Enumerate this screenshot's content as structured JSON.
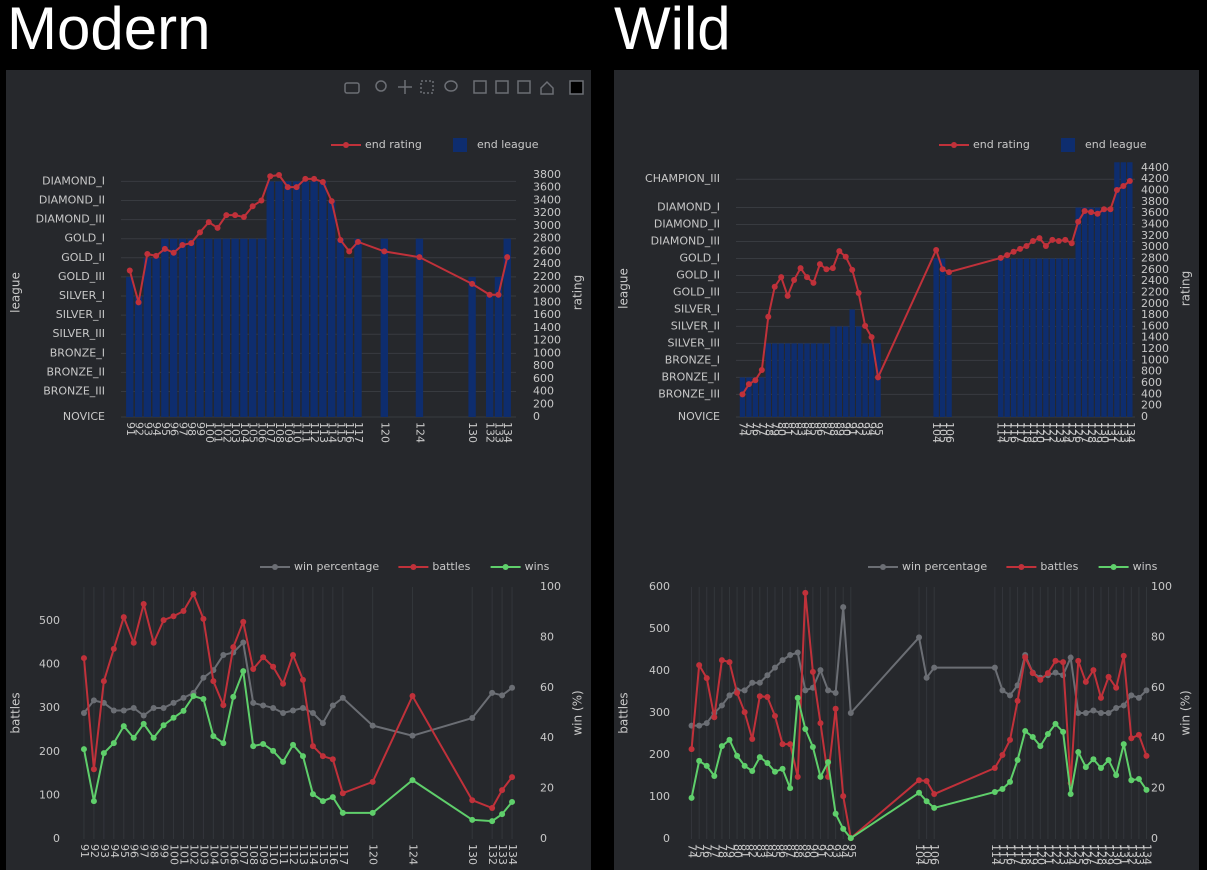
{
  "headings": [
    "Modern",
    "Wild"
  ],
  "chart_data": [
    {
      "type": "bar_line",
      "x": [
        91,
        92,
        93,
        94,
        95,
        96,
        97,
        98,
        99,
        100,
        101,
        102,
        103,
        104,
        105,
        106,
        107,
        108,
        109,
        110,
        111,
        112,
        113,
        114,
        115,
        116,
        117,
        120,
        124,
        130,
        132,
        133,
        134
      ],
      "xlim": [
        90,
        135
      ],
      "series": [
        {
          "name": "end rating",
          "kind": "line",
          "axis": "y2",
          "color": "#c0313a",
          "values": [
            2300,
            1800,
            2560,
            2530,
            2640,
            2580,
            2700,
            2730,
            2900,
            3060,
            2970,
            3170,
            3170,
            3140,
            3310,
            3400,
            3780,
            3800,
            3610,
            3610,
            3740,
            3740,
            3690,
            3390,
            2780,
            2600,
            2750,
            2600,
            2510,
            2090,
            1920,
            1920,
            2510
          ]
        },
        {
          "name": "end league",
          "kind": "bar",
          "color": "#0e2d6e",
          "values": [
            2200,
            1900,
            2500,
            2500,
            2800,
            2800,
            2800,
            2800,
            2800,
            2800,
            2800,
            2800,
            2800,
            2800,
            2800,
            2800,
            3700,
            3700,
            3700,
            3700,
            3700,
            3700,
            3700,
            3400,
            2800,
            2500,
            2800,
            2800,
            2800,
            2200,
            1900,
            2200,
            2800
          ]
        }
      ],
      "y_label": "league",
      "y2_label": "rating",
      "ylim": [
        0,
        3910
      ],
      "yticks": [
        {
          "value": 0,
          "label": "NOVICE"
        },
        {
          "value": 400,
          "label": "BRONZE_III"
        },
        {
          "value": 700,
          "label": "BRONZE_II"
        },
        {
          "value": 1000,
          "label": "BRONZE_I"
        },
        {
          "value": 1300,
          "label": "SILVER_III"
        },
        {
          "value": 1600,
          "label": "SILVER_II"
        },
        {
          "value": 1900,
          "label": "SILVER_I"
        },
        {
          "value": 2200,
          "label": "GOLD_III"
        },
        {
          "value": 2500,
          "label": "GOLD_II"
        },
        {
          "value": 2800,
          "label": "GOLD_I"
        },
        {
          "value": 3100,
          "label": "DIAMOND_III"
        },
        {
          "value": 3400,
          "label": "DIAMOND_II"
        },
        {
          "value": 3700,
          "label": "DIAMOND_I"
        }
      ],
      "y2lim": [
        0,
        3910
      ],
      "y2ticks": [
        0,
        200,
        400,
        600,
        800,
        1000,
        1200,
        1400,
        1600,
        1800,
        2000,
        2200,
        2400,
        2600,
        2800,
        3000,
        3200,
        3400,
        3600,
        3800
      ],
      "ygrid": true,
      "xgrid": false,
      "legend": "top-right"
    },
    {
      "type": "line",
      "x": [
        91,
        92,
        93,
        94,
        95,
        96,
        97,
        98,
        99,
        100,
        101,
        102,
        103,
        104,
        105,
        106,
        107,
        108,
        109,
        110,
        111,
        112,
        113,
        114,
        115,
        116,
        117,
        120,
        124,
        130,
        132,
        133,
        134
      ],
      "xlim": [
        90,
        135
      ],
      "series": [
        {
          "name": "win percentage",
          "kind": "line",
          "axis": "y2",
          "color": "#6b6e74",
          "values": [
            50,
            55,
            54,
            51,
            51,
            52,
            49,
            52,
            52,
            54,
            56,
            58,
            64,
            67,
            73,
            74,
            78,
            54,
            53,
            52,
            50,
            51,
            52,
            50,
            46,
            53,
            56,
            45,
            41,
            48,
            58,
            57,
            60
          ]
        },
        {
          "name": "battles",
          "kind": "line",
          "color": "#c0313a",
          "values": [
            415,
            160,
            362,
            436,
            509,
            450,
            539,
            450,
            502,
            511,
            523,
            562,
            505,
            362,
            307,
            440,
            498,
            390,
            417,
            395,
            356,
            422,
            365,
            213,
            190,
            183,
            105,
            131,
            328,
            89,
            71,
            112,
            142
          ]
        },
        {
          "name": "wins",
          "kind": "line",
          "color": "#5fcf6b",
          "values": [
            206,
            87,
            197,
            220,
            259,
            232,
            264,
            232,
            261,
            278,
            294,
            328,
            321,
            236,
            220,
            326,
            385,
            213,
            218,
            202,
            177,
            216,
            190,
            103,
            87,
            96,
            60,
            60,
            135,
            44,
            41,
            57,
            85
          ]
        }
      ],
      "y_label": "battles",
      "y2_label": "win (%)",
      "ylim": [
        0,
        578
      ],
      "yticks": [
        0,
        100,
        200,
        300,
        400,
        500
      ],
      "y2lim": [
        0,
        100
      ],
      "y2ticks": [
        0,
        20,
        40,
        60,
        80,
        100
      ],
      "ygrid": false,
      "xgrid": true,
      "legend": "top-right"
    },
    {
      "type": "bar_line",
      "x": [
        74,
        75,
        76,
        77,
        78,
        79,
        80,
        81,
        82,
        83,
        84,
        85,
        86,
        87,
        88,
        89,
        90,
        91,
        92,
        93,
        94,
        95,
        104,
        105,
        106,
        114,
        115,
        116,
        117,
        118,
        119,
        120,
        121,
        122,
        123,
        124,
        125,
        126,
        127,
        128,
        129,
        130,
        131,
        132,
        133,
        134
      ],
      "xlim": [
        73,
        134.8
      ],
      "series": [
        {
          "name": "end rating",
          "kind": "line",
          "axis": "y2",
          "color": "#c0313a",
          "values": [
            400,
            580,
            650,
            830,
            1770,
            2300,
            2470,
            2140,
            2420,
            2630,
            2470,
            2370,
            2700,
            2610,
            2630,
            2930,
            2830,
            2600,
            2190,
            1610,
            1410,
            700,
            2950,
            2610,
            2560,
            2810,
            2860,
            2920,
            2970,
            3020,
            3110,
            3160,
            3020,
            3130,
            3110,
            3130,
            3070,
            3450,
            3640,
            3620,
            3590,
            3670,
            3670,
            4010,
            4080,
            4170
          ]
        },
        {
          "name": "end league",
          "kind": "bar",
          "color": "#0e2d6e",
          "values": [
            700,
            700,
            700,
            700,
            1300,
            1300,
            1300,
            1300,
            1300,
            1300,
            1300,
            1300,
            1300,
            1300,
            1600,
            1600,
            1600,
            1900,
            1600,
            1300,
            1300,
            1300,
            2800,
            2800,
            2500,
            2800,
            2800,
            2800,
            2800,
            2800,
            2800,
            2800,
            2800,
            2800,
            2800,
            2800,
            2800,
            3700,
            3700,
            3700,
            3700,
            3700,
            3700,
            4500,
            4500,
            4500
          ]
        }
      ],
      "y_label": "league",
      "y2_label": "rating",
      "ylim": [
        0,
        4540
      ],
      "yticks": [
        {
          "value": 0,
          "label": "NOVICE"
        },
        {
          "value": 400,
          "label": "BRONZE_III"
        },
        {
          "value": 700,
          "label": "BRONZE_II"
        },
        {
          "value": 1000,
          "label": "BRONZE_I"
        },
        {
          "value": 1300,
          "label": "SILVER_III"
        },
        {
          "value": 1600,
          "label": "SILVER_II"
        },
        {
          "value": 1900,
          "label": "SILVER_I"
        },
        {
          "value": 2200,
          "label": "GOLD_III"
        },
        {
          "value": 2500,
          "label": "GOLD_II"
        },
        {
          "value": 2800,
          "label": "GOLD_I"
        },
        {
          "value": 3100,
          "label": "DIAMOND_III"
        },
        {
          "value": 3400,
          "label": "DIAMOND_II"
        },
        {
          "value": 3700,
          "label": "DIAMOND_I"
        },
        {
          "value": 4200,
          "label": "CHAMPION_III"
        }
      ],
      "y2lim": [
        0,
        4540
      ],
      "y2ticks": [
        0,
        200,
        400,
        600,
        800,
        1000,
        1200,
        1400,
        1600,
        1800,
        2000,
        2200,
        2400,
        2600,
        2800,
        3000,
        3200,
        3400,
        3600,
        3800,
        4000,
        4200,
        4400
      ],
      "ygrid": true,
      "xgrid": false,
      "legend": "top-right"
    },
    {
      "type": "line",
      "x": [
        74,
        75,
        76,
        77,
        78,
        79,
        80,
        81,
        82,
        83,
        84,
        85,
        86,
        87,
        88,
        89,
        90,
        91,
        92,
        93,
        94,
        95,
        104,
        105,
        106,
        114,
        115,
        116,
        117,
        118,
        119,
        120,
        121,
        122,
        123,
        124,
        125,
        126,
        127,
        128,
        129,
        130,
        131,
        132,
        133,
        134
      ],
      "xlim": [
        73,
        134.2
      ],
      "series": [
        {
          "name": "win percentage",
          "kind": "line",
          "axis": "y2",
          "color": "#6b6e74",
          "values": [
            45,
            45,
            46,
            50,
            53,
            57,
            59,
            59,
            62,
            62,
            65,
            68,
            71,
            73,
            74,
            59,
            60,
            67,
            59,
            58,
            92,
            50,
            80,
            64,
            68,
            68,
            59,
            57,
            61,
            73,
            66,
            64,
            65,
            66,
            65,
            72,
            50,
            50,
            51,
            50,
            50,
            52,
            53,
            57,
            56,
            59
          ]
        },
        {
          "name": "battles",
          "kind": "line",
          "color": "#c0313a",
          "values": [
            214,
            414,
            383,
            290,
            426,
            421,
            348,
            302,
            238,
            340,
            338,
            293,
            226,
            226,
            148,
            586,
            398,
            276,
            148,
            310,
            102,
            2,
            140,
            138,
            107,
            169,
            200,
            236,
            329,
            433,
            395,
            379,
            395,
            424,
            421,
            133,
            424,
            374,
            402,
            336,
            386,
            360,
            436,
            240,
            248,
            198
          ]
        },
        {
          "name": "wins",
          "kind": "line",
          "color": "#5fcf6b",
          "values": [
            98,
            186,
            174,
            150,
            221,
            236,
            198,
            174,
            162,
            195,
            181,
            160,
            167,
            121,
            336,
            262,
            219,
            148,
            183,
            60,
            24,
            2,
            110,
            90,
            74,
            112,
            119,
            136,
            188,
            257,
            243,
            221,
            250,
            274,
            255,
            107,
            207,
            171,
            190,
            169,
            188,
            152,
            226,
            140,
            143,
            117
          ]
        }
      ],
      "y_label": "battles",
      "y2_label": "win (%)",
      "ylim": [
        0,
        600
      ],
      "yticks": [
        0,
        100,
        200,
        300,
        400,
        500,
        600
      ],
      "y2lim": [
        0,
        100
      ],
      "y2ticks": [
        0,
        20,
        40,
        60,
        80,
        100
      ],
      "ygrid": false,
      "xgrid": true,
      "legend": "top-right"
    }
  ]
}
